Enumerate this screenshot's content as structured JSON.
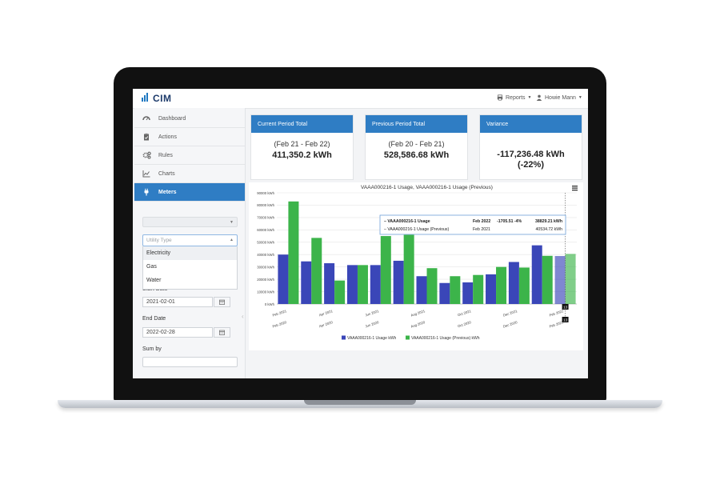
{
  "app": {
    "name": "CIM"
  },
  "nav": {
    "reports_label": "Reports",
    "user_name": "Howie Mann"
  },
  "sidebar": {
    "items": [
      {
        "label": "Dashboard",
        "icon": "dashboard-icon"
      },
      {
        "label": "Actions",
        "icon": "clipboard-check-icon"
      },
      {
        "label": "Rules",
        "icon": "gears-icon"
      },
      {
        "label": "Charts",
        "icon": "area-chart-icon"
      },
      {
        "label": "Meters",
        "icon": "plug-icon",
        "active": true
      }
    ],
    "meter_select_value": "",
    "utility_type": {
      "placeholder": "Utility Type",
      "options": [
        "Electricity",
        "Gas",
        "Water"
      ],
      "highlighted": "Electricity"
    },
    "start_date_label": "Start Date",
    "start_date": "2021-02-01",
    "end_date_label": "End Date",
    "end_date": "2022-02-28",
    "sum_by_label": "Sum by"
  },
  "cards": [
    {
      "title": "Current Period Total",
      "period": "(Feb 21 - Feb 22)",
      "value": "411,350.2 kWh"
    },
    {
      "title": "Previous Period Total",
      "period": "(Feb 20 - Feb 21)",
      "value": "528,586.68 kWh"
    },
    {
      "title": "Variance",
      "value": "-117,236.48 kWh",
      "value2": "(-22%)"
    }
  ],
  "colors": {
    "accent": "#2f7dc4",
    "current": "#3a46b8",
    "previous": "#3cb44a"
  },
  "chart_data": {
    "type": "bar",
    "title": "VAAA000216-1 Usage, VAAA000216-1 Usage (Previous)",
    "ylim": [
      0,
      90000
    ],
    "yticks": [
      "0 kWh",
      "10000 kWh",
      "20000 kWh",
      "30000 kWh",
      "40000 kWh",
      "50000 kWh",
      "60000 kWh",
      "70000 kWh",
      "80000 kWh",
      "90000 kWh"
    ],
    "ytick_values": [
      0,
      10000,
      20000,
      30000,
      40000,
      50000,
      60000,
      70000,
      80000,
      90000
    ],
    "x_labels_current": [
      {
        "i": 0,
        "text": "Feb 2021"
      },
      {
        "i": 2,
        "text": "Apr 2021"
      },
      {
        "i": 4,
        "text": "Jun 2021"
      },
      {
        "i": 6,
        "text": "Aug 2021"
      },
      {
        "i": 8,
        "text": "Oct 2021"
      },
      {
        "i": 10,
        "text": "Dec 2021"
      },
      {
        "i": 12,
        "text": "Feb 2022"
      }
    ],
    "x_labels_previous": [
      {
        "i": 0,
        "text": "Feb 2020"
      },
      {
        "i": 2,
        "text": "Apr 2020"
      },
      {
        "i": 4,
        "text": "Jun 2020"
      },
      {
        "i": 6,
        "text": "Aug 2020"
      },
      {
        "i": 8,
        "text": "Oct 2020"
      },
      {
        "i": 10,
        "text": "Dec 2020"
      },
      {
        "i": 12,
        "text": "Feb 2021"
      }
    ],
    "series": [
      {
        "name": "VAAA000216-1 Usage kWh",
        "color": "#3a46b8",
        "values": [
          40000,
          34500,
          33000,
          31500,
          31500,
          35000,
          22500,
          17000,
          17500,
          24000,
          34000,
          47500,
          38829.21
        ]
      },
      {
        "name": "VAAA000216-1 Usage (Previous) kWh",
        "color": "#3cb44a",
        "values": [
          83000,
          53500,
          19000,
          31500,
          55000,
          56000,
          29000,
          22500,
          23500,
          30000,
          29500,
          39000,
          40534.72
        ]
      }
    ],
    "hover_index": 12,
    "tooltip": {
      "rows": [
        {
          "label": "VAAA000216-1 Usage",
          "period": "Feb 2022",
          "delta": "-1705.51 -4%",
          "value": "38829.21 kWh"
        },
        {
          "label": "VAAA000216-1 Usage (Previous)",
          "period": "Feb 2021",
          "value": "40534.72 kWh"
        }
      ]
    },
    "crosshair_labels": [
      "13",
      "13"
    ],
    "legend": {
      "placement": "bottom-center"
    }
  }
}
